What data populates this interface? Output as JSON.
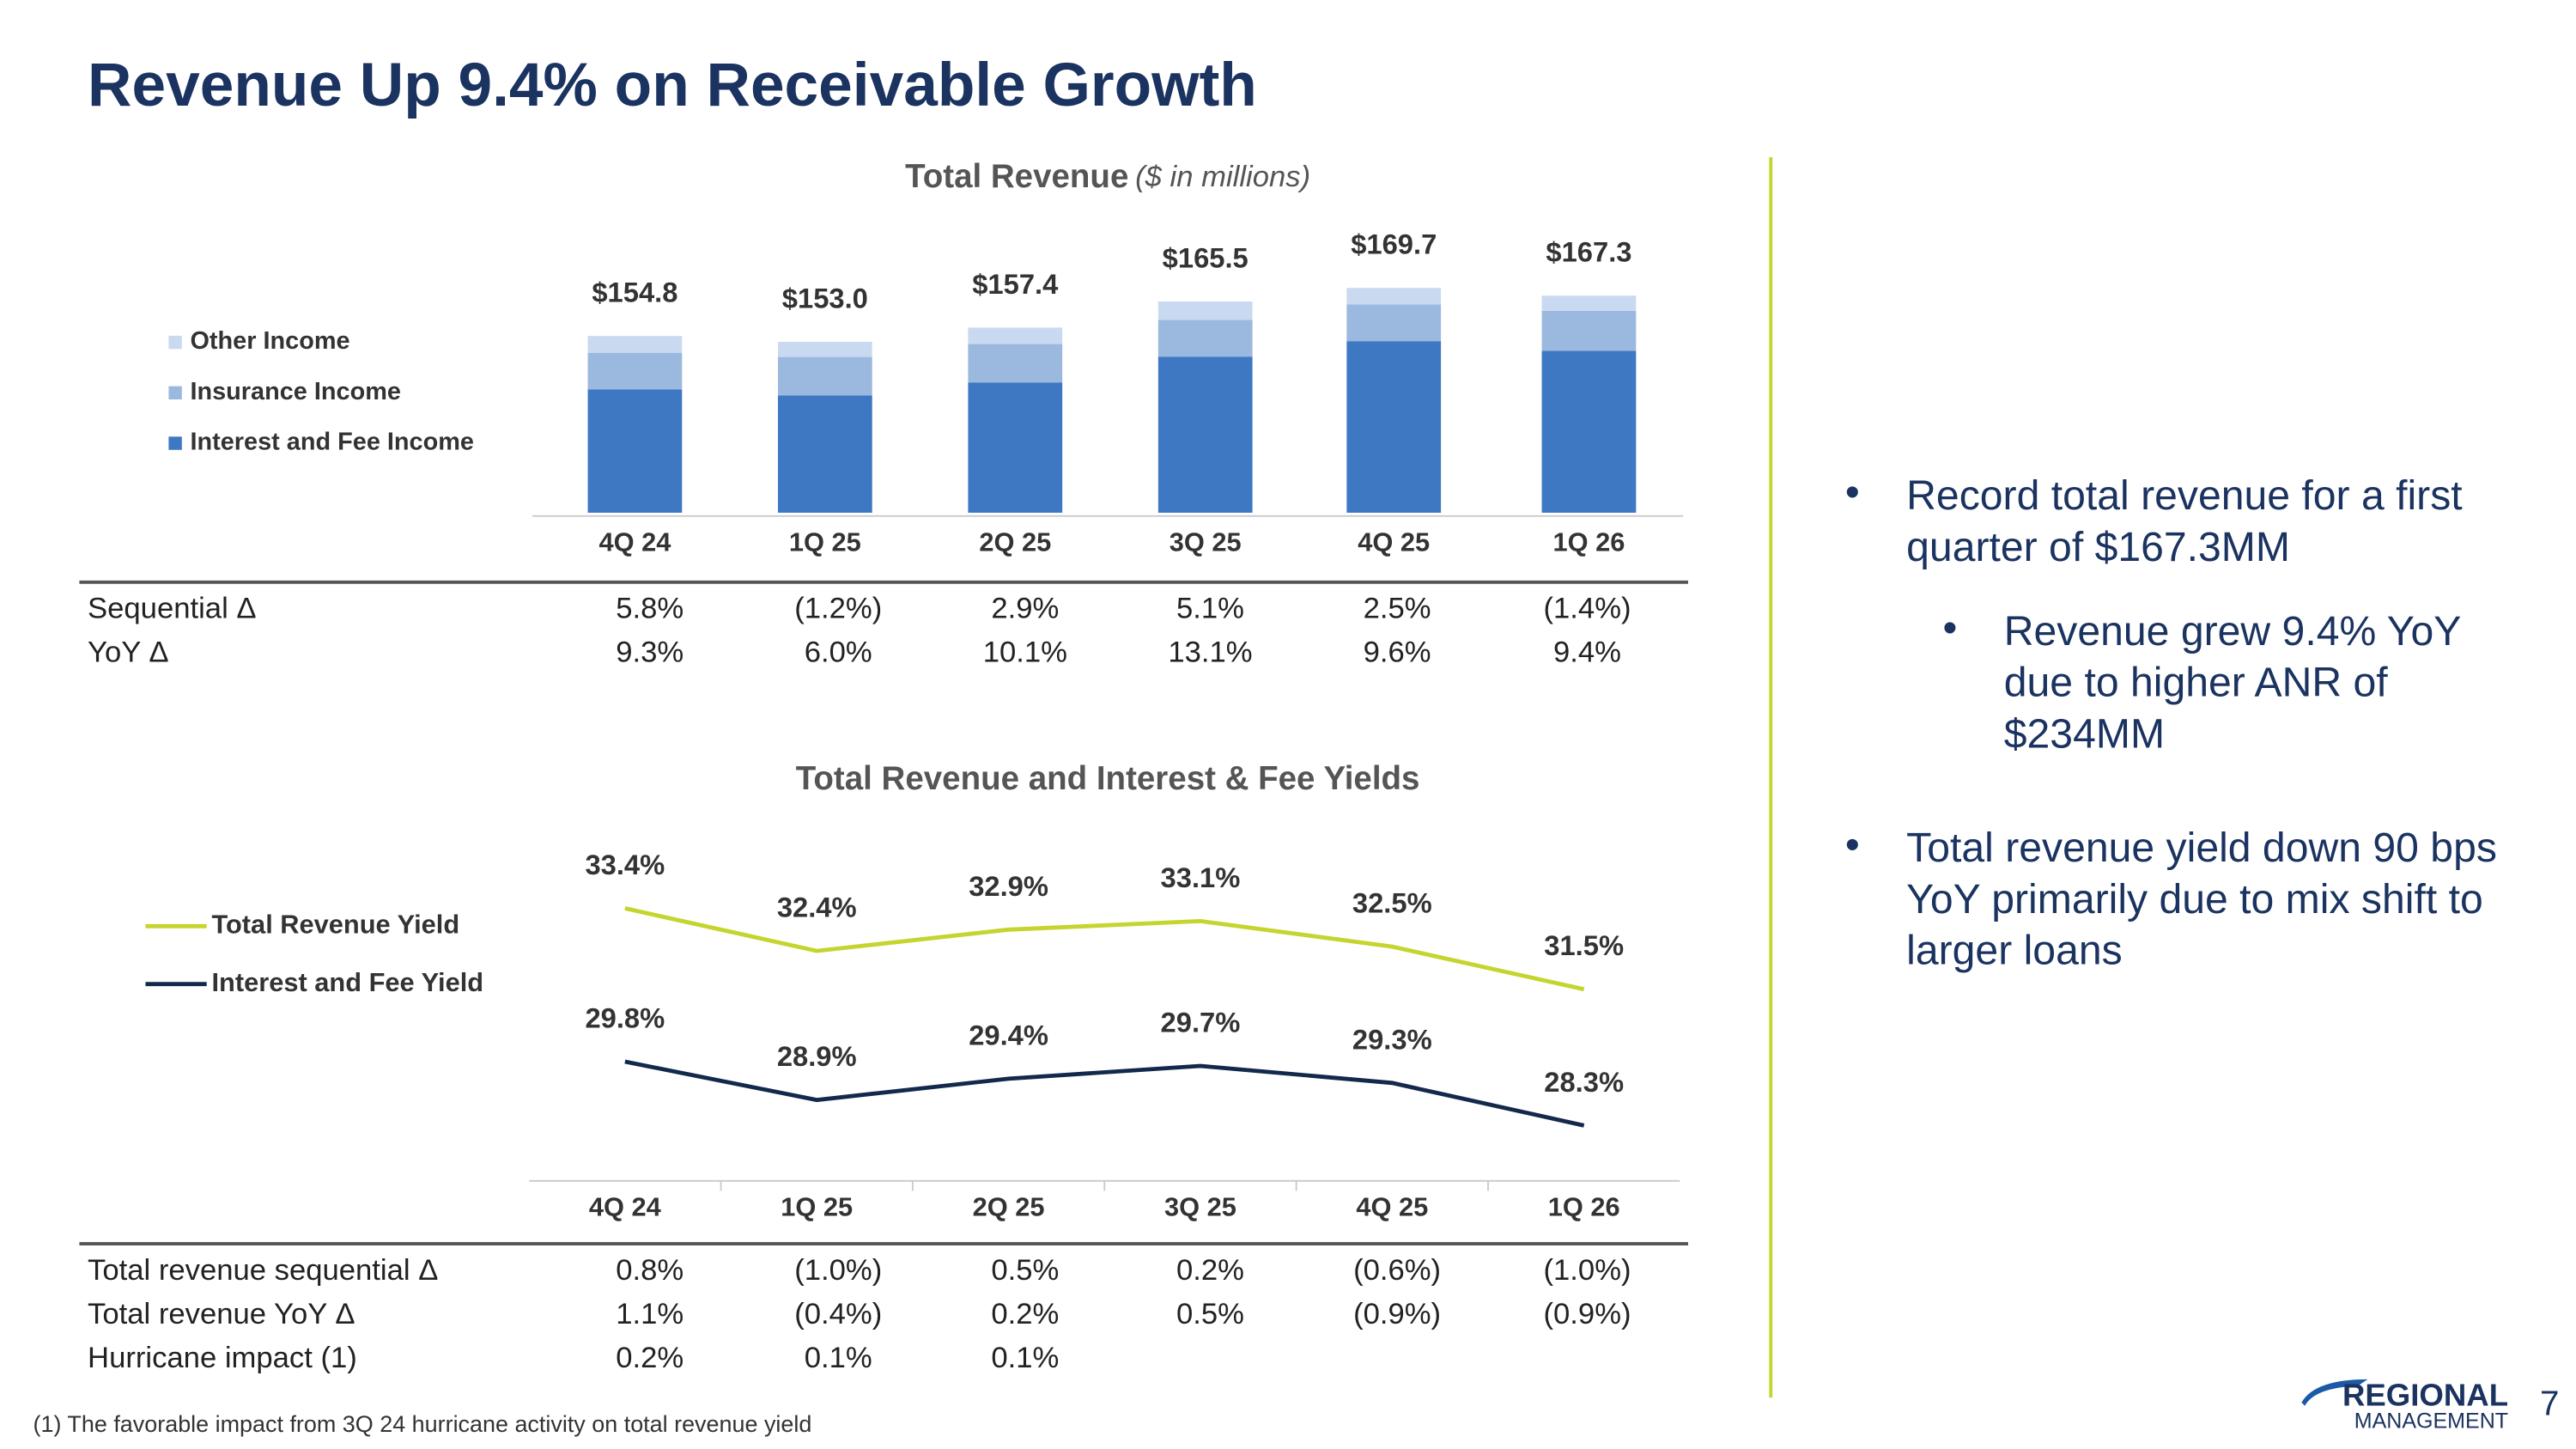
{
  "title": "Revenue Up 9.4% on Receivable Growth",
  "chart_data": [
    {
      "type": "bar",
      "title": "Total Revenue",
      "subtitle": "($ in millions)",
      "categories": [
        "4Q 24",
        "1Q 25",
        "2Q 25",
        "3Q 25",
        "4Q 25",
        "1Q 26"
      ],
      "series": [
        {
          "name": "Interest and Fee Income",
          "color": "#3e78c2",
          "values": [
            138.2,
            136.4,
            140.4,
            148.4,
            153.2,
            150.2
          ]
        },
        {
          "name": "Insurance Income",
          "color": "#9bb9df",
          "values": [
            11.4,
            11.9,
            11.9,
            11.4,
            11.4,
            12.4
          ]
        },
        {
          "name": "Other Income",
          "color": "#c9daf0",
          "values": [
            5.2,
            4.7,
            5.1,
            5.7,
            5.1,
            4.7
          ]
        }
      ],
      "totals": [
        154.8,
        153.0,
        157.4,
        165.5,
        169.7,
        167.3
      ],
      "total_labels": [
        "$154.8",
        "$153.0",
        "$157.4",
        "$165.5",
        "$169.7",
        "$167.3"
      ],
      "ylim": [
        100,
        180
      ]
    },
    {
      "type": "line",
      "title": "Total Revenue and Interest & Fee Yields",
      "categories": [
        "4Q 24",
        "1Q 25",
        "2Q 25",
        "3Q 25",
        "4Q 25",
        "1Q 26"
      ],
      "series": [
        {
          "name": "Total Revenue Yield",
          "color": "#c5d42f",
          "values": [
            33.4,
            32.4,
            32.9,
            33.1,
            32.5,
            31.5
          ],
          "value_labels": [
            "33.4%",
            "32.4%",
            "32.9%",
            "33.1%",
            "32.5%",
            "31.5%"
          ]
        },
        {
          "name": "Interest and Fee Yield",
          "color": "#13294b",
          "values": [
            29.8,
            28.9,
            29.4,
            29.7,
            29.3,
            28.3
          ],
          "value_labels": [
            "29.8%",
            "28.9%",
            "29.4%",
            "29.7%",
            "29.3%",
            "28.3%"
          ]
        }
      ],
      "ylim": [
        27,
        35
      ]
    }
  ],
  "table1": {
    "rows": [
      [
        "Sequential Δ",
        "5.8%",
        "(1.2%)",
        "2.9%",
        "5.1%",
        "2.5%",
        "(1.4%)"
      ],
      [
        "YoY Δ",
        "9.3%",
        "6.0%",
        "10.1%",
        "13.1%",
        "9.6%",
        "9.4%"
      ]
    ]
  },
  "table2": {
    "rows": [
      [
        "Total revenue sequential Δ",
        "0.8%",
        "(1.0%)",
        "0.5%",
        "0.2%",
        "(0.6%)",
        "(1.0%)"
      ],
      [
        "Total revenue YoY Δ",
        "1.1%",
        "(0.4%)",
        "0.2%",
        "0.5%",
        "(0.9%)",
        "(0.9%)"
      ],
      [
        "Hurricane impact (1)",
        "0.2%",
        "0.1%",
        "0.1%"
      ]
    ]
  },
  "bullets": [
    {
      "text": "Record total revenue for a first quarter of $167.3MM",
      "level": 1
    },
    {
      "text": "Revenue grew 9.4% YoY due to higher ANR of $234MM",
      "level": 2
    },
    {
      "text": "Total revenue yield down 90 bps YoY primarily due to mix shift to larger loans",
      "level": 1
    }
  ],
  "footnote": "(1) The favorable impact from 3Q 24 hurricane activity on total revenue yield",
  "logo": {
    "line1": "REGIONAL",
    "line2": "MANAGEMENT"
  },
  "page_number": "7"
}
